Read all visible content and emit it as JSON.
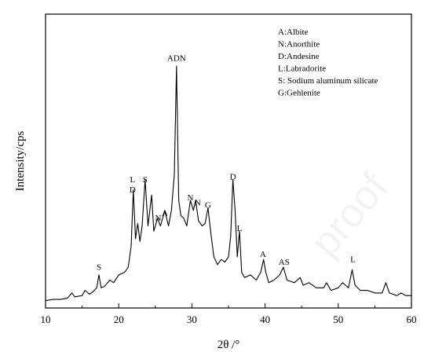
{
  "chart_data": {
    "type": "line",
    "xlabel": "2θ /°",
    "ylabel": "Intensity/cps",
    "xlim": [
      10,
      60
    ],
    "ylim": [
      0,
      100
    ],
    "x_ticks": [
      10,
      20,
      30,
      40,
      50,
      60
    ],
    "grid": false,
    "legend_position": "top-right",
    "legend": [
      "A:Albite",
      "N:Anorthite",
      "D:Andesine",
      "L:Labradorite",
      "S: Sodium aluminum silicate",
      "G:Gehlenite"
    ],
    "peak_annotations": [
      {
        "x": 17.3,
        "y": 13,
        "text": "S"
      },
      {
        "x": 21.9,
        "y": 47,
        "text": "L"
      },
      {
        "x": 21.9,
        "y": 43,
        "text": "D"
      },
      {
        "x": 23.6,
        "y": 47,
        "text": "S"
      },
      {
        "x": 25.4,
        "y": 32,
        "text": "N"
      },
      {
        "x": 26.3,
        "y": 34,
        "text": "A"
      },
      {
        "x": 27.9,
        "y": 94,
        "text": "ADN"
      },
      {
        "x": 29.8,
        "y": 40,
        "text": "N"
      },
      {
        "x": 30.8,
        "y": 38,
        "text": "N"
      },
      {
        "x": 32.2,
        "y": 37,
        "text": "G"
      },
      {
        "x": 35.6,
        "y": 48,
        "text": "D"
      },
      {
        "x": 36.5,
        "y": 28,
        "text": "L"
      },
      {
        "x": 39.7,
        "y": 18,
        "text": "A"
      },
      {
        "x": 42.6,
        "y": 15,
        "text": "AS"
      },
      {
        "x": 52.0,
        "y": 16,
        "text": "L"
      }
    ],
    "series": [
      {
        "color": "#000000",
        "x": [
          10,
          11,
          12,
          13,
          13.6,
          14,
          15,
          15.4,
          16,
          16.5,
          17,
          17.3,
          17.6,
          18,
          18.8,
          19.3,
          20,
          20.8,
          21.3,
          21.7,
          22.0,
          22.3,
          22.6,
          22.9,
          23.2,
          23.6,
          24.0,
          24.5,
          24.8,
          25.3,
          25.7,
          26.3,
          26.8,
          27.2,
          27.6,
          27.9,
          28.2,
          28.5,
          28.9,
          29.3,
          29.8,
          30.2,
          30.5,
          30.9,
          31.4,
          31.8,
          32.2,
          32.6,
          33.0,
          33.5,
          34.0,
          34.5,
          35.0,
          35.3,
          35.6,
          35.9,
          36.2,
          36.5,
          36.8,
          37.2,
          38.0,
          38.8,
          39.4,
          39.8,
          40.1,
          40.5,
          41.2,
          42.0,
          42.5,
          43.0,
          44.0,
          44.8,
          45.2,
          46.0,
          47.0,
          48.0,
          48.4,
          49.0,
          50.0,
          50.6,
          51.4,
          51.9,
          52.3,
          53.0,
          54.0,
          55.0,
          56.0,
          56.5,
          57.0,
          58.0,
          58.6,
          59.2,
          60
        ],
        "y": [
          1,
          1.5,
          1.5,
          2,
          4,
          2.5,
          3,
          5,
          3.5,
          4.5,
          6,
          11,
          6,
          6.5,
          9,
          8,
          11,
          12,
          14,
          22,
          44,
          25,
          31,
          24,
          30,
          48,
          30,
          42,
          28,
          33,
          30,
          36,
          30,
          36,
          50,
          92,
          40,
          34,
          33,
          30,
          40,
          36,
          40,
          32,
          30,
          31,
          37,
          27,
          18,
          15,
          17,
          16,
          18,
          26,
          48,
          36,
          18,
          28,
          12,
          10,
          11,
          9,
          12,
          17,
          12,
          8,
          9,
          11,
          14,
          9,
          8,
          10,
          7,
          8,
          6,
          6,
          8,
          5,
          6,
          8,
          6,
          13,
          7,
          5,
          5,
          4,
          4,
          8,
          4,
          3,
          4,
          3,
          3
        ]
      }
    ]
  },
  "watermark": "proof"
}
